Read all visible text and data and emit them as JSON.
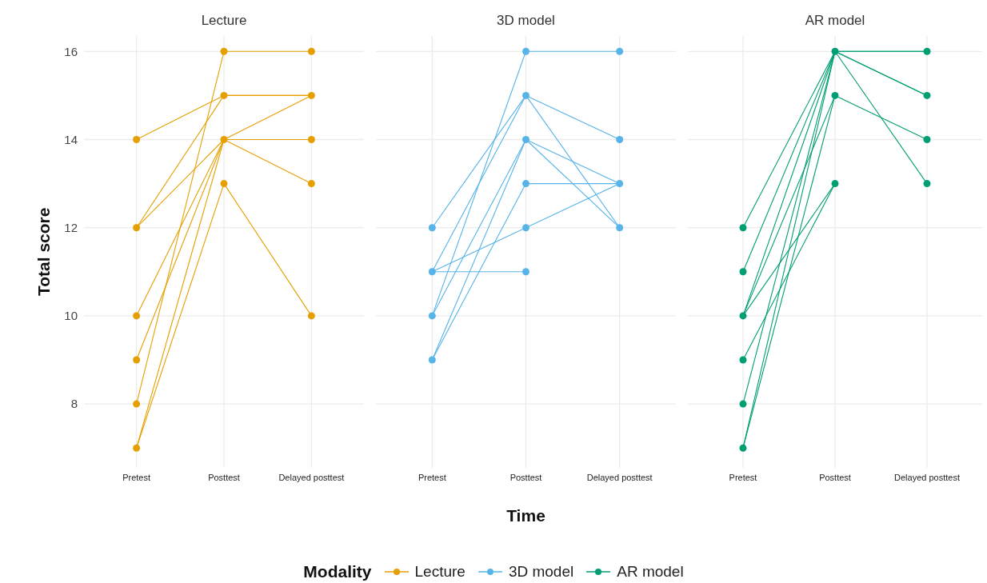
{
  "chart_data": [
    {
      "type": "line",
      "title": "Lecture",
      "ylabel": "Total score",
      "legend_title": "Modality",
      "legend": "bottom",
      "grid": true,
      "tick_labels": true,
      "categories": [
        "Pretest",
        "Posttest",
        "Delayed posttest"
      ],
      "ylim": [
        6.55,
        16.35
      ],
      "yticks": [
        8,
        10,
        12,
        14,
        16
      ],
      "series": [
        {
          "type": "scatter",
          "name": "Lecture",
          "color": "#e69f00",
          "marker": "circle",
          "x": [
            "Pretest",
            "Pretest",
            "Pretest",
            "Pretest",
            "Pretest",
            "Pretest",
            "Posttest",
            "Posttest",
            "Posttest",
            "Posttest",
            "Delayed posttest",
            "Delayed posttest",
            "Delayed posttest",
            "Delayed posttest",
            "Delayed posttest"
          ],
          "values": [
            14,
            12,
            10,
            9,
            8,
            7,
            16,
            15,
            14,
            13,
            16,
            15,
            14,
            13,
            10
          ]
        },
        {
          "color": "#e69f00",
          "values": [
            14,
            15,
            15
          ]
        },
        {
          "color": "#e69f00",
          "values": [
            12,
            14,
            14
          ]
        },
        {
          "color": "#e69f00",
          "values": [
            12,
            15,
            15
          ]
        },
        {
          "color": "#e69f00",
          "values": [
            10,
            14,
            15
          ]
        },
        {
          "color": "#e69f00",
          "values": [
            9,
            14,
            13
          ]
        },
        {
          "color": "#e69f00",
          "values": [
            8,
            16,
            16
          ]
        },
        {
          "color": "#e69f00",
          "values": [
            7,
            14,
            14
          ]
        },
        {
          "color": "#e69f00",
          "values": [
            7,
            13,
            10
          ]
        }
      ]
    },
    {
      "type": "line",
      "title": "3D model",
      "xlabel": "Time",
      "legend": "bottom",
      "grid": true,
      "tick_labels": "x",
      "categories": [
        "Pretest",
        "Posttest",
        "Delayed posttest"
      ],
      "ylim": [
        6.55,
        16.35
      ],
      "yticks": [
        8,
        10,
        12,
        14,
        16
      ],
      "series": [
        {
          "type": "scatter",
          "name": "3D model",
          "color": "#56b4e9",
          "marker": "circle",
          "x": [
            "Pretest",
            "Pretest",
            "Pretest",
            "Pretest",
            "Posttest",
            "Posttest",
            "Posttest",
            "Posttest",
            "Posttest",
            "Posttest",
            "Delayed posttest",
            "Delayed posttest",
            "Delayed posttest",
            "Delayed posttest"
          ],
          "values": [
            12,
            11,
            10,
            9,
            16,
            15,
            14,
            13,
            12,
            11,
            16,
            14,
            13,
            12
          ]
        },
        {
          "color": "#56b4e9",
          "values": [
            12,
            15,
            12
          ]
        },
        {
          "color": "#56b4e9",
          "values": [
            11,
            15,
            14
          ]
        },
        {
          "color": "#56b4e9",
          "values": [
            11,
            12,
            13
          ]
        },
        {
          "color": "#56b4e9",
          "values": [
            11,
            11,
            null
          ]
        },
        {
          "color": "#56b4e9",
          "values": [
            10,
            16,
            16
          ]
        },
        {
          "color": "#56b4e9",
          "values": [
            10,
            14,
            13
          ]
        },
        {
          "color": "#56b4e9",
          "values": [
            9,
            14,
            12
          ]
        },
        {
          "color": "#56b4e9",
          "values": [
            9,
            13,
            13
          ]
        }
      ]
    },
    {
      "type": "line",
      "title": "AR model",
      "legend": "bottom",
      "grid": true,
      "tick_labels": "x",
      "categories": [
        "Pretest",
        "Posttest",
        "Delayed posttest"
      ],
      "ylim": [
        6.55,
        16.35
      ],
      "yticks": [
        8,
        10,
        12,
        14,
        16
      ],
      "series": [
        {
          "type": "scatter",
          "name": "AR model",
          "color": "#009e73",
          "marker": "circle",
          "x": [
            "Pretest",
            "Pretest",
            "Pretest",
            "Pretest",
            "Pretest",
            "Pretest",
            "Posttest",
            "Posttest",
            "Posttest",
            "Delayed posttest",
            "Delayed posttest",
            "Delayed posttest",
            "Delayed posttest"
          ],
          "values": [
            12,
            11,
            10,
            9,
            8,
            7,
            16,
            15,
            13,
            16,
            15,
            14,
            13
          ]
        },
        {
          "color": "#009e73",
          "values": [
            12,
            16,
            16
          ]
        },
        {
          "color": "#009e73",
          "values": [
            11,
            16,
            15
          ]
        },
        {
          "color": "#009e73",
          "values": [
            10,
            16,
            13
          ]
        },
        {
          "color": "#009e73",
          "values": [
            10,
            15,
            14
          ]
        },
        {
          "color": "#009e73",
          "values": [
            10,
            13,
            null
          ]
        },
        {
          "color": "#009e73",
          "values": [
            9,
            13,
            null
          ]
        },
        {
          "color": "#009e73",
          "values": [
            8,
            16,
            16
          ]
        },
        {
          "color": "#009e73",
          "values": [
            7,
            16,
            15
          ]
        },
        {
          "color": "#009e73",
          "values": [
            7,
            15,
            null
          ]
        }
      ]
    }
  ]
}
